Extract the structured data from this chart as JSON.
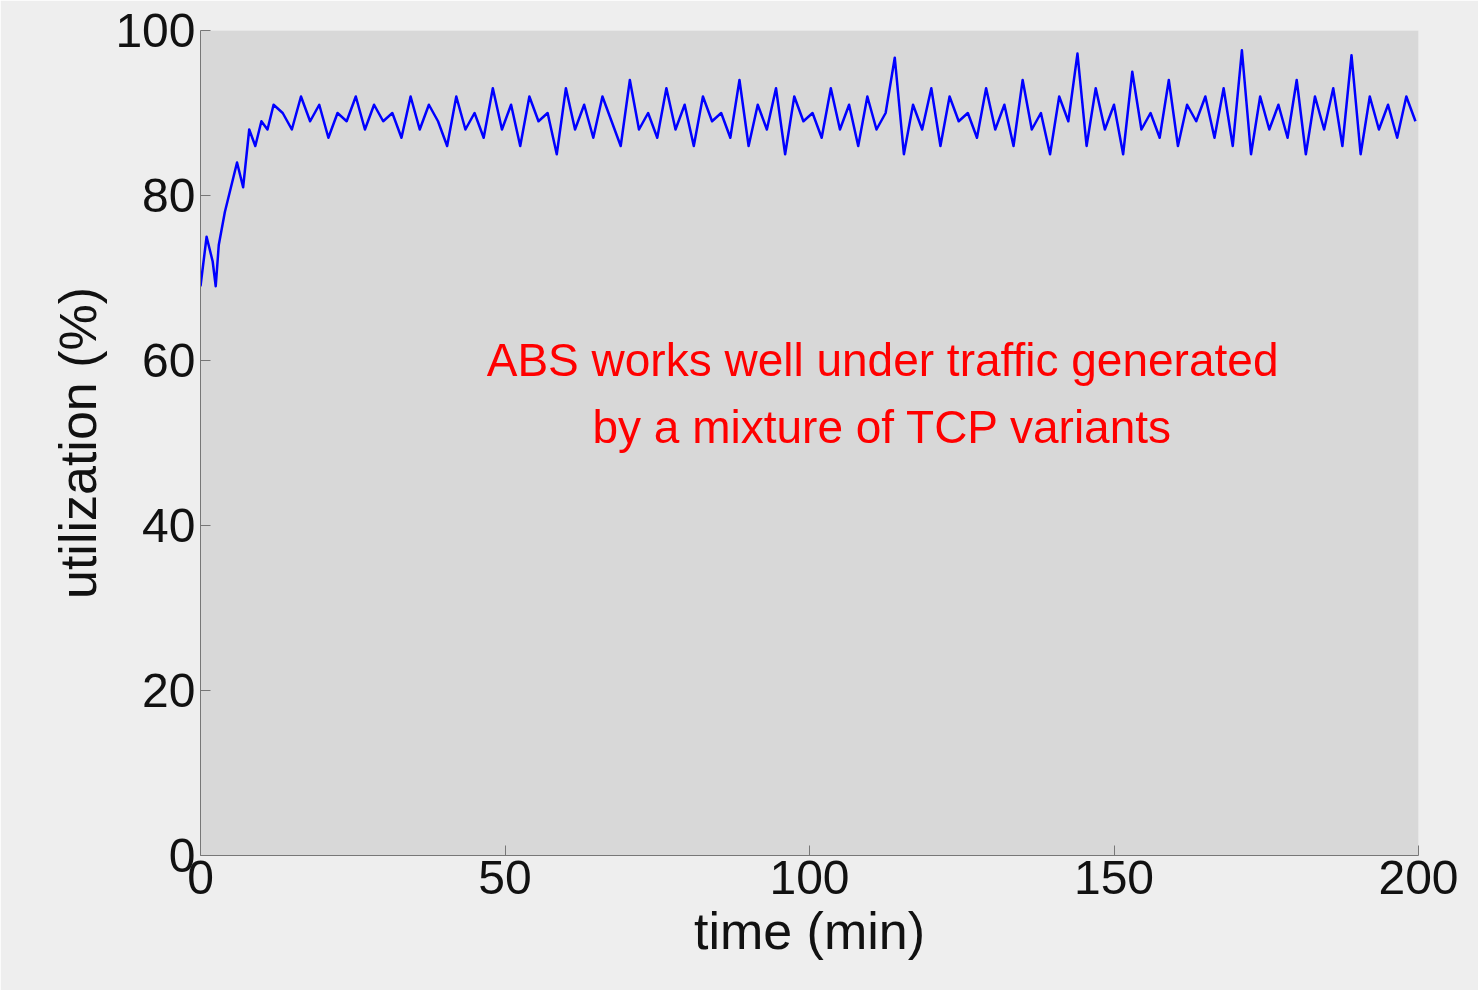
{
  "chart_data": {
    "type": "line",
    "xlabel": "time (min)",
    "ylabel": "utilization (%)",
    "annotations": [
      "ABS works well under traffic generated\nby a mixture of TCP variants"
    ],
    "xlim": [
      0,
      200
    ],
    "xticks": [
      0,
      50,
      100,
      150,
      200
    ],
    "ylim": [
      0,
      100
    ],
    "yticks": [
      0,
      20,
      40,
      60,
      80,
      100
    ],
    "grid": false,
    "marker": "none",
    "line_style": "solid",
    "series": [
      {
        "color": "#0000ff",
        "x": [
          0,
          1,
          2,
          2.5,
          3,
          4,
          5,
          6,
          7,
          8,
          9,
          10,
          11,
          12,
          13.5,
          15,
          16.5,
          18,
          19.5,
          21,
          22.5,
          24,
          25.5,
          27,
          28.5,
          30,
          31.5,
          33,
          34.5,
          36,
          37.5,
          39,
          40.5,
          42,
          43.5,
          45,
          46.5,
          48,
          49.5,
          51,
          52.5,
          54,
          55.5,
          57,
          58.5,
          60,
          61.5,
          63,
          64.5,
          66,
          67.5,
          69,
          70.5,
          72,
          73.5,
          75,
          76.5,
          78,
          79.5,
          81,
          82.5,
          84,
          85.5,
          87,
          88.5,
          90,
          91.5,
          93,
          94.5,
          96,
          97.5,
          99,
          100.5,
          102,
          103.5,
          105,
          106.5,
          108,
          109.5,
          111,
          112.5,
          114,
          115.5,
          117,
          118.5,
          120,
          121.5,
          123,
          124.5,
          126,
          127.5,
          129,
          130.5,
          132,
          133.5,
          135,
          136.5,
          138,
          139.5,
          141,
          142.5,
          144,
          145.5,
          147,
          148.5,
          150,
          151.5,
          153,
          154.5,
          156,
          157.5,
          159,
          160.5,
          162,
          163.5,
          165,
          166.5,
          168,
          169.5,
          171,
          172.5,
          174,
          175.5,
          177,
          178.5,
          180,
          181.5,
          183,
          184.5,
          186,
          187.5,
          189,
          190.5,
          192,
          193.5,
          195,
          196.5,
          198,
          199.5
        ],
        "values": [
          69,
          75,
          72,
          69,
          74,
          78,
          81,
          84,
          81,
          88,
          86,
          89,
          88,
          91,
          90,
          88,
          92,
          89,
          91,
          87,
          90,
          89,
          92,
          88,
          91,
          89,
          90,
          87,
          92,
          88,
          91,
          89,
          86,
          92,
          88,
          90,
          87,
          93,
          88,
          91,
          86,
          92,
          89,
          90,
          85,
          93,
          88,
          91,
          87,
          92,
          89,
          86,
          94,
          88,
          90,
          87,
          93,
          88,
          91,
          86,
          92,
          89,
          90,
          87,
          94,
          86,
          91,
          88,
          93,
          85,
          92,
          89,
          90,
          87,
          93,
          88,
          91,
          86,
          92,
          88,
          90,
          96.7,
          85,
          91,
          88,
          93,
          86,
          92,
          89,
          90,
          87,
          93,
          88,
          91,
          86,
          94,
          88,
          90,
          85,
          92,
          89,
          97.2,
          86,
          93,
          88,
          91,
          85,
          95,
          88,
          90,
          87,
          94,
          86,
          91,
          89,
          92,
          87,
          93,
          86,
          97.6,
          85,
          92,
          88,
          91,
          87,
          94,
          85,
          92,
          88,
          93,
          86,
          97,
          85,
          92,
          88,
          91,
          87,
          92,
          89
        ]
      }
    ]
  }
}
